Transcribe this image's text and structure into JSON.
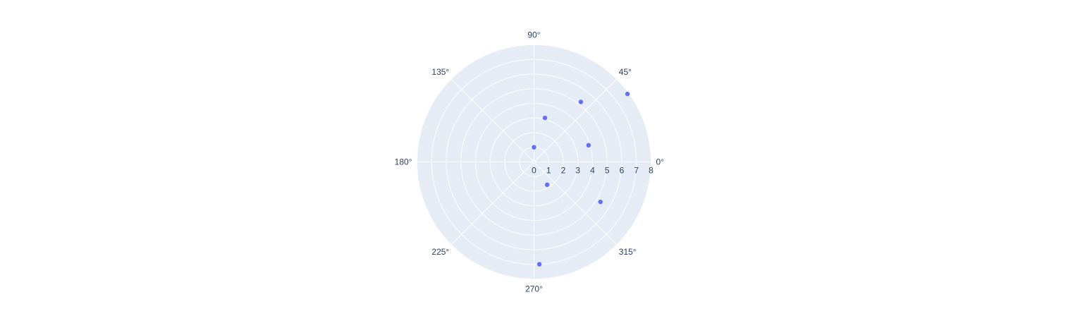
{
  "chart_data": {
    "type": "scatter",
    "subtype": "polar",
    "title": "",
    "radial_range": [
      0,
      8
    ],
    "radial_ticks": [
      "0",
      "1",
      "2",
      "3",
      "4",
      "5",
      "6",
      "7",
      "8"
    ],
    "angular_ticks": [
      "0°",
      "45°",
      "90°",
      "135°",
      "180°",
      "225°",
      "270°",
      "315°"
    ],
    "angular_tick_values_deg": [
      0,
      45,
      90,
      135,
      180,
      225,
      270,
      315
    ],
    "grid": true,
    "legend": "none",
    "series": [
      {
        "r": [
          1.0,
          3.1,
          3.9,
          5.2,
          7.9,
          1.8,
          5.3,
          7.0
        ],
        "theta_deg": [
          90,
          76,
          17,
          52,
          36,
          300,
          329,
          273
        ],
        "marker": "circle"
      }
    ],
    "colors": {
      "plot_background": "#e5ecf6",
      "grid": "#ffffff",
      "marker": "#636efa",
      "text": "#2a3f5f"
    }
  }
}
